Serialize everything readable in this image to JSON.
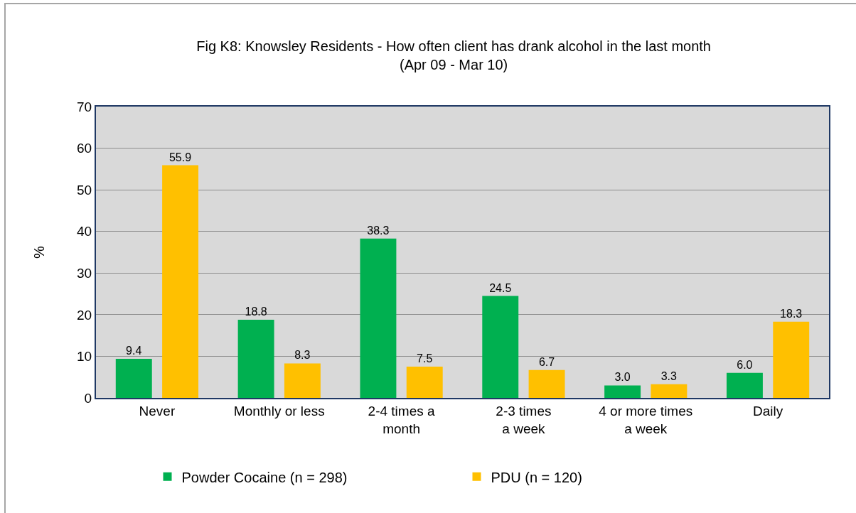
{
  "chart_data": {
    "type": "bar",
    "title": "Fig K8: Knowsley Residents - How often client has drank alcohol in the last month\n(Apr 09 - Mar 10)",
    "ylabel": "%",
    "categories": [
      "Never",
      "Monthly or less",
      "2-4 times a\nmonth",
      "2-3 times\na week",
      "4 or more times\na week",
      "Daily"
    ],
    "series": [
      {
        "name": "Powder Cocaine (n = 298)",
        "color": "#00b050",
        "values": [
          9.4,
          18.8,
          38.3,
          24.5,
          3.0,
          6.0
        ],
        "value_labels": [
          "9.4",
          "18.8",
          "38.3",
          "24.5",
          "3.0",
          "6.0"
        ]
      },
      {
        "name": "PDU (n = 120)",
        "color": "#ffc000",
        "values": [
          55.9,
          8.3,
          7.5,
          6.7,
          3.3,
          18.3
        ],
        "value_labels": [
          "55.9",
          "8.3",
          "7.5",
          "6.7",
          "3.3",
          "18.3"
        ]
      }
    ],
    "ylim": [
      0,
      70
    ],
    "yticks": [
      0,
      10,
      20,
      30,
      40,
      50,
      60,
      70
    ],
    "grid": "y",
    "legend": "bottom"
  }
}
